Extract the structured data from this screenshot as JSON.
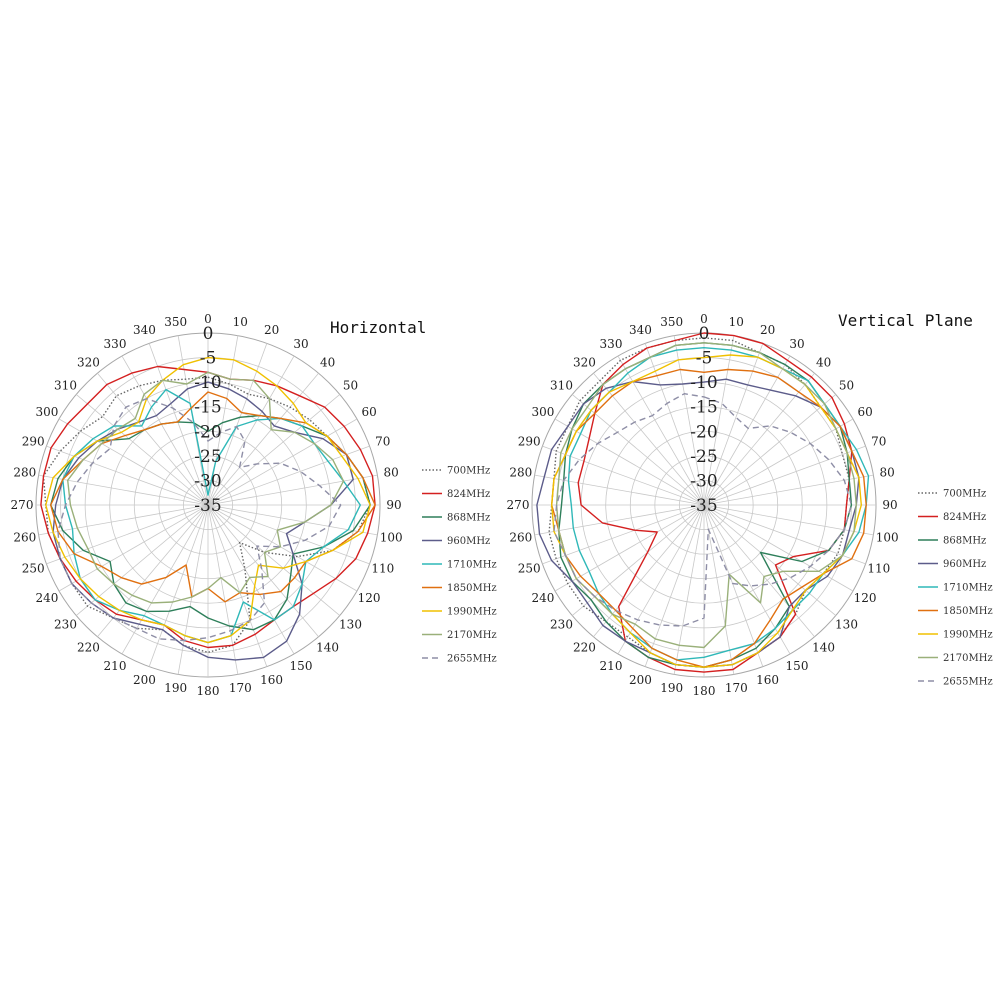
{
  "chart_data": [
    {
      "type": "polar-line",
      "title": "Horizontal",
      "r_ticks": [
        0,
        -5,
        -10,
        -15,
        -20,
        -25,
        -30,
        -35
      ],
      "r_range": [
        -35,
        0
      ],
      "angle_ticks": [
        0,
        10,
        20,
        30,
        40,
        50,
        60,
        70,
        80,
        90,
        100,
        110,
        120,
        130,
        140,
        150,
        160,
        170,
        180,
        190,
        200,
        210,
        220,
        230,
        240,
        250,
        260,
        270,
        280,
        290,
        300,
        310,
        320,
        330,
        340,
        350
      ],
      "angles": [
        0,
        10,
        20,
        30,
        40,
        50,
        60,
        70,
        80,
        90,
        100,
        110,
        120,
        130,
        140,
        150,
        160,
        170,
        180,
        190,
        200,
        210,
        220,
        230,
        240,
        250,
        260,
        270,
        280,
        290,
        300,
        310,
        320,
        330,
        340,
        350
      ],
      "legend_position": "right",
      "series": [
        {
          "name": "700MHz",
          "color": "#666666",
          "dash": "1.5 2",
          "values": [
            -9,
            -10,
            -11,
            -10,
            -9,
            -8,
            -7,
            -5,
            -3,
            -2,
            -4,
            -8,
            -14,
            -20,
            -25,
            -20,
            -10,
            -6,
            -5,
            -6,
            -8,
            -6,
            -5,
            -3,
            -3,
            -3,
            -2,
            -2,
            -1,
            -3,
            -5,
            -7,
            -6,
            -7,
            -8,
            -9
          ]
        },
        {
          "name": "824MHz",
          "color": "#d42020",
          "dash": "",
          "values": [
            -8,
            -9,
            -8,
            -7,
            -6,
            -4,
            -3,
            -2,
            -1,
            -1,
            -2,
            -3,
            -5,
            -7,
            -8,
            -8,
            -7,
            -6,
            -6,
            -7,
            -9,
            -8,
            -6,
            -5,
            -4,
            -3,
            -2,
            -1,
            -1,
            -1,
            -2,
            -3,
            -3,
            -4,
            -5,
            -7
          ]
        },
        {
          "name": "868MHz",
          "color": "#2e7f5a",
          "dash": "",
          "values": [
            -20,
            -18,
            -16,
            -14,
            -12,
            -10,
            -7,
            -5,
            -3,
            -2,
            -5,
            -10,
            -15,
            -13,
            -10,
            -8,
            -8,
            -10,
            -12,
            -14,
            -12,
            -10,
            -9,
            -10,
            -12,
            -8,
            -5,
            -3,
            -4,
            -6,
            -9,
            -14,
            -15,
            -16,
            -17,
            -18
          ]
        },
        {
          "name": "960MHz",
          "color": "#5c5c8a",
          "dash": "",
          "values": [
            -10,
            -11,
            -12,
            -13,
            -14,
            -12,
            -8,
            -5,
            -5,
            -10,
            -15,
            -18,
            -15,
            -10,
            -6,
            -3,
            -2,
            -3,
            -4,
            -6,
            -8,
            -7,
            -5,
            -4,
            -3,
            -3,
            -3,
            -4,
            -5,
            -7,
            -9,
            -11,
            -13,
            -14,
            -13,
            -11
          ]
        },
        {
          "name": "1710MHz",
          "color": "#2fb8b8",
          "dash": "",
          "values": [
            -33,
            -26,
            -18,
            -15,
            -12,
            -10,
            -10,
            -9,
            -7,
            -4,
            -6,
            -10,
            -12,
            -10,
            -8,
            -8,
            -14,
            -8,
            -7,
            -8,
            -9,
            -9,
            -7,
            -5,
            -5,
            -6,
            -7,
            -6,
            -5,
            -6,
            -8,
            -10,
            -14,
            -12,
            -10,
            -14
          ]
        },
        {
          "name": "1850MHz",
          "color": "#e07010",
          "dash": "",
          "values": [
            -12,
            -13,
            -15,
            -14,
            -12,
            -9,
            -7,
            -5,
            -3,
            -1,
            -4,
            -8,
            -12,
            -12,
            -12,
            -14,
            -16,
            -15,
            -18,
            -16,
            -22,
            -18,
            -14,
            -12,
            -10,
            -6,
            -4,
            -3,
            -5,
            -8,
            -10,
            -13,
            -15,
            -16,
            -17,
            -15
          ]
        },
        {
          "name": "1990MHz",
          "color": "#f0c000",
          "dash": "",
          "values": [
            -5,
            -5,
            -6,
            -7,
            -8,
            -9,
            -7,
            -6,
            -4,
            -2,
            -3,
            -8,
            -12,
            -15,
            -19,
            -16,
            -10,
            -8,
            -7,
            -8,
            -9,
            -8,
            -7,
            -6,
            -5,
            -4,
            -3,
            -2,
            -3,
            -6,
            -9,
            -12,
            -13,
            -10,
            -8,
            -6
          ]
        },
        {
          "name": "2170MHz",
          "color": "#9ab07a",
          "dash": "",
          "values": [
            -8,
            -9,
            -8,
            -10,
            -15,
            -12,
            -10,
            -8,
            -7,
            -10,
            -15,
            -20,
            -18,
            -20,
            -16,
            -18,
            -16,
            -20,
            -18,
            -16,
            -14,
            -12,
            -11,
            -10,
            -9,
            -9,
            -8,
            -7,
            -6,
            -8,
            -10,
            -11,
            -12,
            -9,
            -8,
            -10
          ]
        },
        {
          "name": "2655MHz",
          "color": "#8e8ea6",
          "dash": "6 4",
          "values": [
            -22,
            -20,
            -18,
            -20,
            -25,
            -22,
            -18,
            -15,
            -12,
            -8,
            -10,
            -14,
            -18,
            -22,
            -18,
            -12,
            -10,
            -9,
            -8,
            -7,
            -6,
            -6,
            -5,
            -4,
            -3,
            -3,
            -4,
            -6,
            -8,
            -10,
            -12,
            -10,
            -9,
            -10,
            -14,
            -18
          ]
        }
      ]
    },
    {
      "type": "polar-line",
      "title": "Vertical Plane",
      "r_ticks": [
        0,
        -5,
        -10,
        -15,
        -20,
        -25,
        -30,
        -35
      ],
      "r_range": [
        -35,
        0
      ],
      "angle_ticks": [
        0,
        10,
        20,
        30,
        40,
        50,
        60,
        70,
        80,
        90,
        100,
        110,
        120,
        130,
        140,
        150,
        160,
        170,
        180,
        190,
        200,
        210,
        220,
        230,
        240,
        250,
        260,
        270,
        280,
        290,
        300,
        310,
        320,
        330,
        340,
        350
      ],
      "angles": [
        0,
        10,
        20,
        30,
        40,
        50,
        60,
        70,
        80,
        90,
        100,
        110,
        120,
        130,
        140,
        150,
        160,
        170,
        180,
        190,
        200,
        210,
        220,
        230,
        240,
        250,
        260,
        270,
        280,
        290,
        300,
        310,
        320,
        330,
        340,
        350
      ],
      "legend_position": "right",
      "series": [
        {
          "name": "700MHz",
          "color": "#666666",
          "dash": "1.5 2",
          "values": [
            -1,
            -1,
            -2,
            -2,
            -3,
            -4,
            -4,
            -5,
            -5,
            -6,
            -6,
            -6,
            -7,
            -8,
            -6,
            -4,
            -3,
            -2,
            -2,
            -2,
            -3,
            -4,
            -4,
            -3,
            -3,
            -3,
            -3,
            -4,
            -4,
            -3,
            -3,
            -2,
            -2,
            -1,
            -1,
            -1
          ]
        },
        {
          "name": "824MHz",
          "color": "#d42020",
          "dash": "",
          "values": [
            0,
            0,
            0,
            -1,
            -1,
            -1,
            -2,
            -3,
            -5,
            -6,
            -6,
            -8,
            -14,
            -16,
            -6,
            -4,
            -3,
            -1,
            -1,
            -1,
            -2,
            -3,
            -8,
            -20,
            -24,
            -20,
            -14,
            -10,
            -9,
            -9,
            -8,
            -6,
            -3,
            -2,
            -1,
            -1
          ]
        },
        {
          "name": "868MHz",
          "color": "#2e7f5a",
          "dash": "",
          "values": [
            -2,
            -2,
            -2,
            -2,
            -2,
            -3,
            -3,
            -4,
            -5,
            -5,
            -6,
            -8,
            -12,
            -20,
            -8,
            -6,
            -4,
            -3,
            -2,
            -2,
            -2,
            -3,
            -4,
            -5,
            -4,
            -4,
            -5,
            -6,
            -6,
            -5,
            -4,
            -3,
            -3,
            -3,
            -3,
            -2
          ]
        },
        {
          "name": "960MHz",
          "color": "#5c5c8a",
          "dash": "",
          "values": [
            -10,
            -9,
            -9,
            -8,
            -6,
            -4,
            -3,
            -3,
            -3,
            -4,
            -5,
            -5,
            -6,
            -8,
            -8,
            -4,
            -3,
            -2,
            -2,
            -2,
            -3,
            -3,
            -3,
            -4,
            -4,
            -2,
            -1,
            -1,
            -2,
            -2,
            -3,
            -3,
            -4,
            -6,
            -9,
            -10
          ]
        },
        {
          "name": "1710MHz",
          "color": "#2fb8b8",
          "dash": "",
          "values": [
            -3,
            -3,
            -3,
            -3,
            -2,
            -3,
            -3,
            -2,
            -1,
            -2,
            -3,
            -5,
            -7,
            -7,
            -7,
            -6,
            -5,
            -5,
            -4,
            -3,
            -4,
            -5,
            -6,
            -7,
            -8,
            -8,
            -8,
            -8,
            -7,
            -6,
            -6,
            -5,
            -5,
            -4,
            -3,
            -3
          ]
        },
        {
          "name": "1850MHz",
          "color": "#e07010",
          "dash": "",
          "values": [
            -8,
            -7,
            -6,
            -5,
            -5,
            -4,
            -3,
            -3,
            -2,
            -2,
            -2,
            -3,
            -7,
            -9,
            -10,
            -8,
            -5,
            -3,
            -2,
            -3,
            -4,
            -6,
            -7,
            -7,
            -6,
            -5,
            -5,
            -4,
            -4,
            -5,
            -5,
            -6,
            -6,
            -6,
            -7,
            -7
          ]
        },
        {
          "name": "1990MHz",
          "color": "#f0c000",
          "dash": "",
          "values": [
            -5,
            -4,
            -3,
            -3,
            -3,
            -4,
            -4,
            -4,
            -3,
            -3,
            -4,
            -5,
            -7,
            -8,
            -7,
            -5,
            -3,
            -2,
            -2,
            -2,
            -3,
            -5,
            -6,
            -6,
            -5,
            -5,
            -4,
            -4,
            -4,
            -5,
            -5,
            -5,
            -5,
            -6,
            -6,
            -5
          ]
        },
        {
          "name": "2170MHz",
          "color": "#9ab07a",
          "dash": "",
          "values": [
            -2,
            -2,
            -2,
            -3,
            -3,
            -3,
            -4,
            -4,
            -4,
            -4,
            -4,
            -5,
            -8,
            -14,
            -16,
            -12,
            -20,
            -10,
            -6,
            -6,
            -6,
            -7,
            -6,
            -6,
            -5,
            -5,
            -5,
            -5,
            -5,
            -4,
            -4,
            -4,
            -3,
            -3,
            -3,
            -2
          ]
        },
        {
          "name": "2655MHz",
          "color": "#8e8ea6",
          "dash": "6 4",
          "values": [
            -13,
            -14,
            -16,
            -17,
            -14,
            -12,
            -10,
            -8,
            -6,
            -5,
            -6,
            -8,
            -10,
            -12,
            -14,
            -16,
            -18,
            -30,
            -12,
            -10,
            -9,
            -8,
            -7,
            -6,
            -5,
            -5,
            -4,
            -5,
            -6,
            -8,
            -10,
            -12,
            -13,
            -14,
            -13,
            -12
          ]
        }
      ]
    }
  ]
}
